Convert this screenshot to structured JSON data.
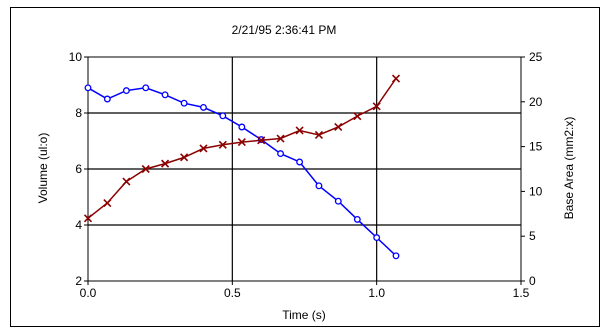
{
  "chart_data": {
    "type": "line",
    "title": "2/21/95 2:36:41 PM",
    "xlabel": "Time (s)",
    "ylabel_left": "Volume (ul:o)",
    "ylabel_right": "Base Area (mm2:x)",
    "xlim": [
      0,
      1.5
    ],
    "ylim_left": [
      2,
      10
    ],
    "ylim_right": [
      0,
      25
    ],
    "xticks": [
      "0.0",
      "0.5",
      "1.0",
      "1.5"
    ],
    "yticks_left": [
      "2",
      "4",
      "6",
      "8",
      "10"
    ],
    "yticks_right": [
      "0",
      "5",
      "10",
      "15",
      "20",
      "25"
    ],
    "grid": true,
    "series": [
      {
        "axis": "left",
        "marker": "o",
        "color": "#0000ff",
        "x": [
          0.0,
          0.067,
          0.133,
          0.2,
          0.267,
          0.333,
          0.4,
          0.467,
          0.533,
          0.6,
          0.667,
          0.733,
          0.8,
          0.867,
          0.933,
          1.0,
          1.067
        ],
        "values": [
          8.9,
          8.5,
          8.8,
          8.9,
          8.65,
          8.35,
          8.2,
          7.9,
          7.5,
          7.05,
          6.55,
          6.25,
          5.4,
          4.85,
          4.2,
          3.55,
          2.9
        ]
      },
      {
        "axis": "right",
        "marker": "x",
        "color": "#8b0000",
        "x": [
          0.0,
          0.067,
          0.133,
          0.2,
          0.267,
          0.333,
          0.4,
          0.467,
          0.533,
          0.6,
          0.667,
          0.733,
          0.8,
          0.867,
          0.933,
          1.0,
          1.067
        ],
        "values": [
          7.0,
          8.7,
          11.1,
          12.5,
          13.1,
          13.8,
          14.8,
          15.2,
          15.5,
          15.7,
          15.9,
          16.8,
          16.3,
          17.2,
          18.4,
          19.5,
          22.6
        ]
      }
    ]
  }
}
